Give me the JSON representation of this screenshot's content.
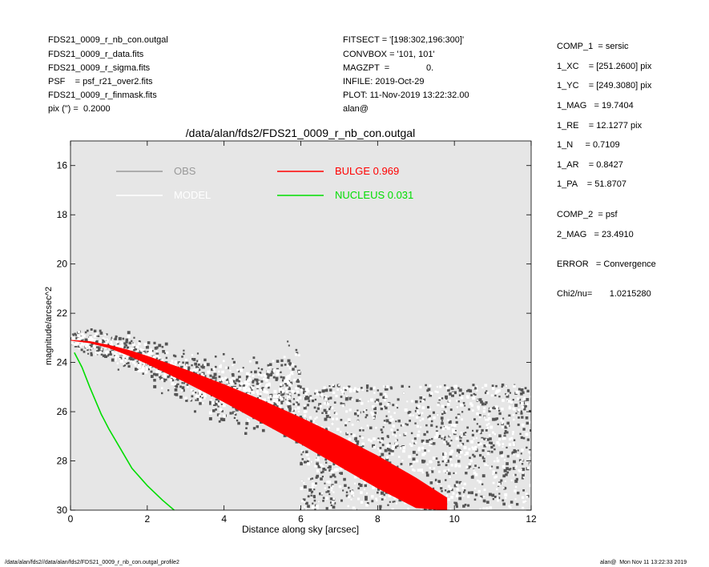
{
  "header_left": [
    "FDS21_0009_r_nb_con.outgal",
    "FDS21_0009_r_data.fits",
    "FDS21_0009_r_sigma.fits",
    "PSF    = psf_r21_over2.fits",
    "FDS21_0009_r_finmask.fits",
    "pix (\") =  0.2000"
  ],
  "header_mid": [
    "FITSECT = '[198:302,196:300]'",
    "CONVBOX = '101, 101'",
    "MAGZPT  =               0.",
    "INFILE: 2019-Oct-29",
    "PLOT: 11-Nov-2019 13:22:32.00",
    "alan@"
  ],
  "right_params": [
    "COMP_1  = sersic",
    "1_XC    = [251.2600] pix",
    "1_YC    = [249.3080] pix",
    "1_MAG   = 19.7404",
    "1_RE    = 12.1277 pix",
    "1_N     = 0.7109",
    "1_AR    = 0.8427",
    "1_PA    = 51.8707",
    "COMP_2  = psf",
    "2_MAG   = 23.4910",
    "ERROR   = Convergence",
    "Chi2/nu=       1.0215280"
  ],
  "footer": {
    "left": "/data/alan/fds2//data/alan/fds2/FDS21_0009_r_nb_con.outgal_profile2",
    "right": "alan@  Mon Nov 11 13:22:33 2019"
  },
  "colors": {
    "plot_bg": "#e6e6e6",
    "obs": "#555555",
    "obs_legend": "#999999",
    "model": "#ffffff",
    "bulge": "#ff0000",
    "nucleus": "#00dd00"
  },
  "chart_data": {
    "type": "scatter",
    "title": "/data/alan/fds2/FDS21_0009_r_nb_con.outgal",
    "xlabel": "Distance along sky [arcsec]",
    "ylabel": "magnitude/arcsec^2",
    "xlim": [
      0,
      12
    ],
    "ylim": [
      30,
      15
    ],
    "y_inverted": true,
    "xticks": [
      "0",
      "2",
      "4",
      "6",
      "8",
      "10",
      "12"
    ],
    "yticks": [
      "16",
      "18",
      "20",
      "22",
      "24",
      "26",
      "28",
      "30"
    ],
    "legend": [
      {
        "label": "OBS",
        "color": "#999999"
      },
      {
        "label": "MODEL",
        "color": "#ffffff"
      },
      {
        "label": "BULGE  0.969",
        "color": "#ff0000"
      },
      {
        "label": "NUCLEUS  0.031",
        "color": "#00dd00"
      }
    ],
    "series": [
      {
        "name": "BULGE  0.969",
        "kind": "band",
        "x": [
          0.0,
          0.5,
          1.0,
          1.5,
          2.0,
          3.0,
          4.0,
          5.0,
          6.0,
          7.0,
          8.0,
          9.0,
          9.8
        ],
        "y_upper": [
          23.1,
          23.15,
          23.3,
          23.5,
          23.75,
          24.3,
          24.9,
          25.55,
          26.25,
          27.0,
          27.8,
          28.7,
          29.5
        ],
        "y_lower": [
          23.1,
          23.2,
          23.4,
          23.7,
          24.05,
          24.8,
          25.6,
          26.45,
          27.3,
          28.2,
          29.1,
          29.9,
          30.0
        ]
      },
      {
        "name": "NUCLEUS  0.031",
        "kind": "line",
        "x": [
          0.1,
          0.3,
          0.5,
          0.8,
          1.0,
          1.3,
          1.6,
          2.0,
          2.4,
          2.7
        ],
        "y": [
          23.6,
          24.2,
          25.0,
          26.1,
          26.7,
          27.5,
          28.3,
          29.0,
          29.6,
          30.0
        ]
      },
      {
        "name": "OBS",
        "kind": "scatter",
        "description_ranges": {
          "x": [
            0.0,
            12.0
          ],
          "y": [
            22.6,
            30.0
          ]
        }
      },
      {
        "name": "MODEL",
        "kind": "scatter",
        "description_ranges": {
          "x": [
            0.0,
            12.0
          ],
          "y": [
            22.6,
            30.0
          ]
        }
      }
    ]
  }
}
